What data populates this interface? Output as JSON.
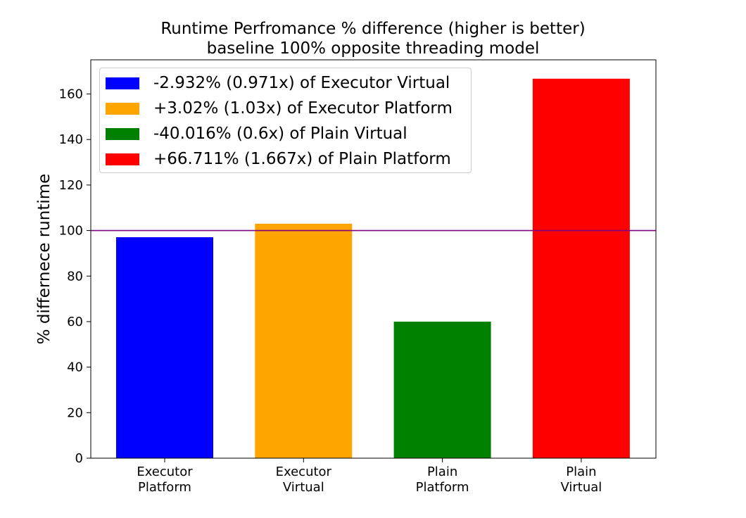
{
  "chart_data": {
    "type": "bar",
    "title": "Runtime Perfromance % difference (higher is better)",
    "subtitle": "baseline 100% opposite threading model",
    "xlabel": "",
    "ylabel": "% differnece runtime",
    "categories": [
      [
        "Executor",
        "Platform"
      ],
      [
        "Executor",
        "Virtual"
      ],
      [
        "Plain",
        "Platform"
      ],
      [
        "Plain",
        "Virtual"
      ]
    ],
    "values": [
      97.068,
      103.02,
      59.984,
      166.711
    ],
    "colors": [
      "#0000ff",
      "#ffa500",
      "#008000",
      "#ff0000"
    ],
    "ylim": [
      0,
      175
    ],
    "yticks": [
      0,
      20,
      40,
      60,
      80,
      100,
      120,
      140,
      160
    ],
    "reference_line": {
      "y": 100,
      "color": "#800080"
    },
    "grid": false,
    "legend_position": "top-left",
    "legend": [
      {
        "label": "-2.932% (0.971x) of Executor Virtual",
        "color": "#0000ff"
      },
      {
        "label": "+3.02% (1.03x) of Executor Platform",
        "color": "#ffa500"
      },
      {
        "label": "-40.016% (0.6x) of Plain Virtual",
        "color": "#008000"
      },
      {
        "label": "+66.711% (1.667x) of Plain Platform",
        "color": "#ff0000"
      }
    ]
  }
}
